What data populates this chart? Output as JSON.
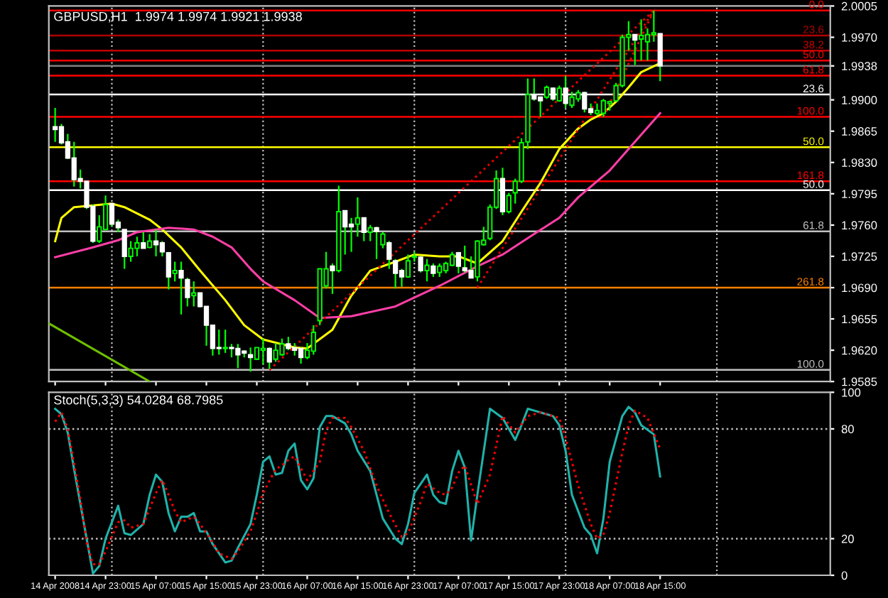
{
  "chart_data": [
    {
      "type": "candlestick",
      "title": "GBPUSD,H1  1.9974 1.9974 1.9921 1.9938",
      "color": "#00ff00",
      "colors": [
        "#ffffff",
        "#ffffff",
        "#ffffff",
        "#ffffff",
        "#ffffff",
        "#ffffff",
        "#ffffff",
        "#00ff00",
        "#00ff00",
        "#ffffff",
        "#ffffff",
        "#ffffff",
        "#00ff00",
        "#00ff00",
        "#ffffff",
        "#00ff00",
        "#ffffff",
        "#ffffff",
        "#ffffff",
        "#00ff00",
        "#ffffff",
        "#ffffff",
        "#00ff00",
        "#ffffff",
        "#ffffff",
        "#ffffff",
        "#ffffff",
        "#00ff00",
        "#ffffff",
        "#ffffff",
        "#ffffff",
        "#ffffff",
        "#00ff00",
        "#00ff00",
        "#ffffff",
        "#00ff00",
        "#00ff00",
        "#ffffff",
        "#ffffff",
        "#ffffff",
        "#00ff00",
        "#00ff00",
        "#00ff00",
        "#00ff00",
        "#ffffff",
        "#00ff00",
        "#ffffff",
        "#ffffff",
        "#00ff00",
        "#ffffff",
        "#00ff00",
        "#ffffff",
        "#00ff00",
        "#ffffff",
        "#ffffff",
        "#ffffff",
        "#00ff00",
        "#00ff00",
        "#ffffff",
        "#00ff00",
        "#ffffff",
        "#00ff00",
        "#00ff00",
        "#00ff00",
        "#ffffff",
        "#ffffff",
        "#ffffff",
        "#00ff00",
        "#00ff00",
        "#00ff00",
        "#00ff00",
        "#ffffff",
        "#00ff00",
        "#00ff00",
        "#00ff00",
        "#00ff00",
        "#ffffff",
        "#ffffff",
        "#00ff00",
        "#ffffff",
        "#00ff00",
        "#ffffff",
        "#00ff00",
        "#00ff00",
        "#ffffff",
        "#ffffff",
        "#00ff00",
        "#00ff00",
        "#00ff00",
        "#00ff00",
        "#00ff00",
        "#00ff00",
        "#ffffff",
        "#00ff00",
        "#00ff00",
        "#00ff00",
        "#ffffff"
      ],
      "x": [
        "2008-04-14T15:00",
        "2008-04-14T16:00",
        "2008-04-14T17:00",
        "2008-04-14T18:00",
        "2008-04-14T19:00",
        "2008-04-14T20:00",
        "2008-04-14T21:00",
        "2008-04-14T22:00",
        "2008-04-14T23:00",
        "2008-04-15T00:00",
        "2008-04-15T01:00",
        "2008-04-15T02:00",
        "2008-04-15T03:00",
        "2008-04-15T04:00",
        "2008-04-15T05:00",
        "2008-04-15T06:00",
        "2008-04-15T07:00",
        "2008-04-15T08:00",
        "2008-04-15T09:00",
        "2008-04-15T10:00",
        "2008-04-15T11:00",
        "2008-04-15T12:00",
        "2008-04-15T13:00",
        "2008-04-15T14:00",
        "2008-04-15T15:00",
        "2008-04-15T16:00",
        "2008-04-15T17:00",
        "2008-04-15T18:00",
        "2008-04-15T19:00",
        "2008-04-15T20:00",
        "2008-04-15T21:00",
        "2008-04-15T22:00",
        "2008-04-15T23:00",
        "2008-04-16T00:00",
        "2008-04-16T01:00",
        "2008-04-16T02:00",
        "2008-04-16T03:00",
        "2008-04-16T04:00",
        "2008-04-16T05:00",
        "2008-04-16T06:00",
        "2008-04-16T07:00",
        "2008-04-16T08:00",
        "2008-04-16T09:00",
        "2008-04-16T10:00",
        "2008-04-16T11:00",
        "2008-04-16T12:00",
        "2008-04-16T13:00",
        "2008-04-16T14:00",
        "2008-04-16T15:00",
        "2008-04-16T16:00",
        "2008-04-16T17:00",
        "2008-04-16T18:00",
        "2008-04-16T19:00",
        "2008-04-16T20:00",
        "2008-04-16T21:00",
        "2008-04-16T22:00",
        "2008-04-16T23:00",
        "2008-04-17T00:00",
        "2008-04-17T01:00",
        "2008-04-17T02:00",
        "2008-04-17T03:00",
        "2008-04-17T04:00",
        "2008-04-17T05:00",
        "2008-04-17T06:00",
        "2008-04-17T07:00",
        "2008-04-17T08:00",
        "2008-04-17T09:00",
        "2008-04-17T10:00",
        "2008-04-17T11:00",
        "2008-04-17T12:00",
        "2008-04-17T13:00",
        "2008-04-17T14:00",
        "2008-04-17T15:00",
        "2008-04-17T16:00",
        "2008-04-17T17:00",
        "2008-04-17T18:00",
        "2008-04-17T19:00",
        "2008-04-17T20:00",
        "2008-04-17T21:00",
        "2008-04-17T22:00",
        "2008-04-17T23:00",
        "2008-04-18T00:00",
        "2008-04-18T01:00",
        "2008-04-18T02:00",
        "2008-04-18T03:00",
        "2008-04-18T04:00",
        "2008-04-18T05:00",
        "2008-04-18T06:00",
        "2008-04-18T07:00",
        "2008-04-18T08:00",
        "2008-04-18T09:00",
        "2008-04-18T10:00",
        "2008-04-18T11:00",
        "2008-04-18T12:00",
        "2008-04-18T13:00",
        "2008-04-18T14:00",
        "2008-04-18T15:00"
      ],
      "ohlc": [
        [
          1.987,
          1.9891,
          1.9853,
          1.9867
        ],
        [
          1.987,
          1.9873,
          1.985,
          1.9852
        ],
        [
          1.9853,
          1.9862,
          1.9834,
          1.9835
        ],
        [
          1.9835,
          1.9853,
          1.9803,
          1.9811
        ],
        [
          1.9812,
          1.9822,
          1.9801,
          1.9809
        ],
        [
          1.9809,
          1.9809,
          1.9778,
          1.978
        ],
        [
          1.9781,
          1.9783,
          1.974,
          1.9742
        ],
        [
          1.9742,
          1.9771,
          1.974,
          1.9758
        ],
        [
          1.9755,
          1.9793,
          1.9755,
          1.9783
        ],
        [
          1.9784,
          1.9784,
          1.9758,
          1.9761
        ],
        [
          1.9763,
          1.9766,
          1.9752,
          1.9757
        ],
        [
          1.9755,
          1.9755,
          1.9711,
          1.9725
        ],
        [
          1.9725,
          1.9742,
          1.9719,
          1.9734
        ],
        [
          1.9734,
          1.9747,
          1.9725,
          1.974
        ],
        [
          1.974,
          1.9752,
          1.9734,
          1.9734
        ],
        [
          1.9735,
          1.975,
          1.9734,
          1.9742
        ],
        [
          1.9742,
          1.9755,
          1.9725,
          1.9738
        ],
        [
          1.974,
          1.9742,
          1.9725,
          1.973
        ],
        [
          1.9729,
          1.973,
          1.9688,
          1.9702
        ],
        [
          1.9706,
          1.9719,
          1.9697,
          1.9709
        ],
        [
          1.9709,
          1.9719,
          1.966,
          1.9701
        ],
        [
          1.9699,
          1.9701,
          1.9669,
          1.9679
        ],
        [
          1.9681,
          1.9697,
          1.9669,
          1.9684
        ],
        [
          1.9684,
          1.9684,
          1.9668,
          1.9669
        ],
        [
          1.9669,
          1.9669,
          1.9625,
          1.9648
        ],
        [
          1.9648,
          1.9648,
          1.9614,
          1.9622
        ],
        [
          1.9623,
          1.9643,
          1.9615,
          1.9622
        ],
        [
          1.9622,
          1.9643,
          1.9617,
          1.9623
        ],
        [
          1.9623,
          1.9627,
          1.9612,
          1.9622
        ],
        [
          1.9622,
          1.9627,
          1.96,
          1.9615
        ],
        [
          1.9619,
          1.962,
          1.9612,
          1.9617
        ],
        [
          1.9615,
          1.9623,
          1.9596,
          1.9612
        ],
        [
          1.961,
          1.9623,
          1.9609,
          1.9623
        ],
        [
          1.962,
          1.9633,
          1.9604,
          1.9622
        ],
        [
          1.9622,
          1.9623,
          1.9599,
          1.9607
        ],
        [
          1.961,
          1.9628,
          1.9607,
          1.962
        ],
        [
          1.9615,
          1.9633,
          1.9614,
          1.9627
        ],
        [
          1.9627,
          1.9635,
          1.962,
          1.9622
        ],
        [
          1.9623,
          1.9628,
          1.9614,
          1.962
        ],
        [
          1.9622,
          1.9623,
          1.9605,
          1.9612
        ],
        [
          1.9612,
          1.9628,
          1.961,
          1.962
        ],
        [
          1.9619,
          1.9648,
          1.9615,
          1.964
        ],
        [
          1.9653,
          1.9711,
          1.9648,
          1.9711
        ],
        [
          1.9692,
          1.973,
          1.9689,
          1.9711
        ],
        [
          1.9714,
          1.9717,
          1.9683,
          1.9709
        ],
        [
          1.9709,
          1.9804,
          1.9707,
          1.9775
        ],
        [
          1.9776,
          1.9776,
          1.9727,
          1.9758
        ],
        [
          1.9761,
          1.9768,
          1.973,
          1.9758
        ],
        [
          1.9761,
          1.9791,
          1.9747,
          1.9768
        ],
        [
          1.9768,
          1.9768,
          1.9742,
          1.9752
        ],
        [
          1.9752,
          1.976,
          1.9742,
          1.9757
        ],
        [
          1.9757,
          1.9758,
          1.9722,
          1.9753
        ],
        [
          1.9738,
          1.9752,
          1.9734,
          1.975
        ],
        [
          1.974,
          1.9742,
          1.9711,
          1.9722
        ],
        [
          1.972,
          1.9722,
          1.9689,
          1.9706
        ],
        [
          1.9709,
          1.9711,
          1.9691,
          1.9702
        ],
        [
          1.9702,
          1.9727,
          1.9701,
          1.972
        ],
        [
          1.9724,
          1.973,
          1.9719,
          1.9725
        ],
        [
          1.9724,
          1.9725,
          1.9707,
          1.9709
        ],
        [
          1.9709,
          1.9722,
          1.9697,
          1.9715
        ],
        [
          1.9714,
          1.9717,
          1.9702,
          1.9706
        ],
        [
          1.9707,
          1.9717,
          1.9702,
          1.9714
        ],
        [
          1.9709,
          1.9719,
          1.9706,
          1.9717
        ],
        [
          1.9715,
          1.973,
          1.9714,
          1.9727
        ],
        [
          1.9729,
          1.973,
          1.9706,
          1.9714
        ],
        [
          1.9712,
          1.9737,
          1.9707,
          1.9709
        ],
        [
          1.9709,
          1.9725,
          1.9701,
          1.9701
        ],
        [
          1.9702,
          1.9743,
          1.9697,
          1.9742
        ],
        [
          1.9738,
          1.9758,
          1.9737,
          1.9743
        ],
        [
          1.9745,
          1.9783,
          1.9743,
          1.978
        ],
        [
          1.978,
          1.9821,
          1.9778,
          1.9812
        ],
        [
          1.9812,
          1.9824,
          1.9771,
          1.9775
        ],
        [
          1.9775,
          1.9796,
          1.9773,
          1.9793
        ],
        [
          1.9796,
          1.9812,
          1.9784,
          1.9809
        ],
        [
          1.9809,
          1.9857,
          1.9807,
          1.9852
        ],
        [
          1.9853,
          1.9924,
          1.9845,
          1.9906
        ],
        [
          1.9906,
          1.9924,
          1.9899,
          1.9901
        ],
        [
          1.9903,
          1.9903,
          1.9881,
          1.9899
        ],
        [
          1.9903,
          1.9916,
          1.9901,
          1.9914
        ],
        [
          1.9913,
          1.9914,
          1.9899,
          1.9901
        ],
        [
          1.9899,
          1.9916,
          1.9898,
          1.9913
        ],
        [
          1.9913,
          1.9927,
          1.9891,
          1.9896
        ],
        [
          1.9894,
          1.9909,
          1.9891,
          1.9903
        ],
        [
          1.9901,
          1.9911,
          1.9898,
          1.9908
        ],
        [
          1.9908,
          1.9909,
          1.9886,
          1.989
        ],
        [
          1.989,
          1.9896,
          1.9883,
          1.9886
        ],
        [
          1.9885,
          1.9896,
          1.9883,
          1.9888
        ],
        [
          1.9885,
          1.9901,
          1.9881,
          1.9899
        ],
        [
          1.9896,
          1.9899,
          1.9888,
          1.9898
        ],
        [
          1.9899,
          1.9919,
          1.9898,
          1.9916
        ],
        [
          1.9916,
          1.9973,
          1.9914,
          1.997
        ],
        [
          1.997,
          1.9988,
          1.9955,
          1.9973
        ],
        [
          1.9973,
          1.9973,
          1.9939,
          1.9967
        ],
        [
          1.9968,
          1.999,
          1.9944,
          1.9972
        ],
        [
          1.9965,
          1.998,
          1.9944,
          1.9973
        ],
        [
          1.9973,
          2.0,
          1.9965,
          1.9975
        ],
        [
          1.9974,
          1.9974,
          1.9921,
          1.9938
        ]
      ],
      "series": [
        {
          "type": "line",
          "color": "#ffff00",
          "x": [
            "2008-04-14T15:00",
            "2008-04-14T16:00",
            "2008-04-14T18:00",
            "2008-04-15T00:00",
            "2008-04-15T02:00",
            "2008-04-15T06:00",
            "2008-04-15T08:00",
            "2008-04-15T11:00",
            "2008-04-15T14:00",
            "2008-04-15T18:00",
            "2008-04-15T21:00",
            "2008-04-16T00:00",
            "2008-04-16T05:00",
            "2008-04-16T07:00",
            "2008-04-16T11:00",
            "2008-04-16T14:00",
            "2008-04-16T17:00",
            "2008-04-16T21:00",
            "2008-04-17T00:00",
            "2008-04-17T04:00",
            "2008-04-17T07:00",
            "2008-04-17T10:00",
            "2008-04-17T14:00",
            "2008-04-17T17:00",
            "2008-04-17T20:00",
            "2008-04-17T23:00",
            "2008-04-18T02:00",
            "2008-04-18T04:00",
            "2008-04-18T06:00",
            "2008-04-18T08:00",
            "2008-04-18T10:00",
            "2008-04-18T12:00",
            "2008-04-18T15:00"
          ],
          "values": [
            1.9742,
            1.9768,
            1.978,
            1.9784,
            1.978,
            1.9766,
            1.9755,
            1.9735,
            1.9709,
            1.9676,
            1.9648,
            1.9632,
            1.9623,
            1.9622,
            1.9643,
            1.9681,
            1.9709,
            1.9719,
            1.9727,
            1.9725,
            1.9725,
            1.9717,
            1.9742,
            1.9775,
            1.9807,
            1.9845,
            1.9868,
            1.9878,
            1.9885,
            1.9898,
            1.9914,
            1.9931,
            1.9941
          ]
        },
        {
          "type": "line",
          "color": "#ff3fa6",
          "x": [
            "2008-04-14T15:00",
            "2008-04-14T21:00",
            "2008-04-15T01:00",
            "2008-04-15T04:00",
            "2008-04-15T09:00",
            "2008-04-15T13:00",
            "2008-04-15T16:00",
            "2008-04-15T19:00",
            "2008-04-15T22:00",
            "2008-04-16T00:00",
            "2008-04-16T05:00",
            "2008-04-16T09:00",
            "2008-04-16T14:00",
            "2008-04-16T21:00",
            "2008-04-17T04:00",
            "2008-04-17T10:00",
            "2008-04-17T14:00",
            "2008-04-17T19:00",
            "2008-04-17T23:00",
            "2008-04-18T02:00",
            "2008-04-18T07:00",
            "2008-04-18T10:00",
            "2008-04-18T15:00"
          ],
          "values": [
            1.9724,
            1.9735,
            1.9743,
            1.9752,
            1.9757,
            1.9755,
            1.9747,
            1.9735,
            1.9711,
            1.9697,
            1.9676,
            1.9656,
            1.9658,
            1.9669,
            1.9692,
            1.9714,
            1.9727,
            1.975,
            1.9768,
            1.9791,
            1.9821,
            1.9845,
            1.9885
          ]
        },
        {
          "type": "line",
          "color": "#6fbf00",
          "x": [
            "2008-04-14T14:00",
            "2008-04-15T06:00"
          ],
          "values": [
            1.965,
            1.9585
          ]
        },
        {
          "type": "line",
          "color": "#e00000",
          "line_style": "dotted",
          "x": [
            "2008-04-16T01:00",
            "2008-04-18T14:00"
          ],
          "values": [
            1.9598,
            2.0
          ]
        },
        {
          "type": "line",
          "color": "#e00000",
          "line_style": "dotted",
          "x": [
            "2008-04-17T10:00",
            "2008-04-18T14:00"
          ],
          "values": [
            1.969,
            2.0
          ]
        },
        {
          "type": "line",
          "color": "#e00000",
          "line_style": "dotted",
          "x": [
            "2008-04-18T06:00",
            "2008-04-18T14:00"
          ],
          "values": [
            1.9881,
            2.0
          ]
        }
      ],
      "xlim": [
        "2008-04-14T14:00",
        "2008-04-19T18:00"
      ],
      "xticks": [
        {
          "value": "2008-04-14T15:00",
          "label": null
        },
        {
          "value": "2008-04-14T23:00",
          "label": null
        },
        {
          "value": "2008-04-15T07:00",
          "label": null
        },
        {
          "value": "2008-04-15T15:00",
          "label": null
        },
        {
          "value": "2008-04-15T23:00",
          "label": null
        },
        {
          "value": "2008-04-16T07:00",
          "label": null
        },
        {
          "value": "2008-04-16T15:00",
          "label": null
        },
        {
          "value": "2008-04-16T23:00",
          "label": null
        },
        {
          "value": "2008-04-17T07:00",
          "label": null
        },
        {
          "value": "2008-04-17T15:00",
          "label": null
        },
        {
          "value": "2008-04-17T23:00",
          "label": null
        },
        {
          "value": "2008-04-18T07:00",
          "label": null
        },
        {
          "value": "2008-04-18T15:00",
          "label": null
        }
      ],
      "ylim": [
        1.9585,
        2.0005
      ],
      "yticks": [
        {
          "value": 2.0005,
          "label": "2.0005"
        },
        {
          "value": 1.997,
          "label": "1.9970"
        },
        {
          "value": 1.9938,
          "label": "1.9938"
        },
        {
          "value": 1.99,
          "label": "1.9900"
        },
        {
          "value": 1.9865,
          "label": "1.9865"
        },
        {
          "value": 1.983,
          "label": "1.9830"
        },
        {
          "value": 1.9795,
          "label": "1.9795"
        },
        {
          "value": 1.976,
          "label": "1.9760"
        },
        {
          "value": 1.9725,
          "label": "1.9725"
        },
        {
          "value": 1.969,
          "label": "1.9690"
        },
        {
          "value": 1.9655,
          "label": "1.9655"
        },
        {
          "value": 1.962,
          "label": "1.9620"
        },
        {
          "value": 1.9585,
          "label": "1.9585"
        }
      ],
      "tick_labels": "y",
      "annotations": [
        {
          "text": "0.0",
          "x": "2008-04-19T17:00",
          "y": 2.0
        },
        {
          "text": "23.6",
          "x": "2008-04-19T17:00",
          "y": 1.9972
        },
        {
          "text": "38.2",
          "x": "2008-04-19T17:00",
          "y": 1.9955
        },
        {
          "text": "50.0",
          "x": "2008-04-19T17:00",
          "y": 1.9944
        },
        {
          "text": "61.8",
          "x": "2008-04-19T17:00",
          "y": 1.9927
        },
        {
          "text": "23.6",
          "x": "2008-04-19T17:00",
          "y": 1.9906
        },
        {
          "text": "100.0",
          "x": "2008-04-19T17:00",
          "y": 1.9881
        },
        {
          "text": "50.0",
          "x": "2008-04-19T17:00",
          "y": 1.9847
        },
        {
          "text": "161.8",
          "x": "2008-04-19T17:00",
          "y": 1.9809
        },
        {
          "text": "50.0",
          "x": "2008-04-19T17:00",
          "y": 1.9799
        },
        {
          "text": "61.8",
          "x": "2008-04-19T17:00",
          "y": 1.9753
        },
        {
          "text": "261.8",
          "x": "2008-04-19T17:00",
          "y": 1.969
        },
        {
          "text": "100.0",
          "x": "2008-04-19T17:00",
          "y": 1.9598
        }
      ],
      "ref_lines": [
        {
          "axis": "x",
          "value": "2008-04-15T00:00",
          "color": "#c0c0c0",
          "line_style": "dotted"
        },
        {
          "axis": "x",
          "value": "2008-04-16T00:00",
          "color": "#c0c0c0",
          "line_style": "dotted"
        },
        {
          "axis": "x",
          "value": "2008-04-17T00:00",
          "color": "#c0c0c0",
          "line_style": "dotted"
        },
        {
          "axis": "x",
          "value": "2008-04-18T00:00",
          "color": "#c0c0c0",
          "line_style": "dotted"
        },
        {
          "axis": "x",
          "value": "2008-04-19T00:00",
          "color": "#c0c0c0",
          "line_style": "dotted"
        },
        {
          "axis": "y",
          "value": 2.0,
          "color": "#ff0000"
        },
        {
          "axis": "y",
          "value": 1.9972,
          "color": "#b00000"
        },
        {
          "axis": "y",
          "value": 1.9955,
          "color": "#c00000"
        },
        {
          "axis": "y",
          "value": 1.9944,
          "color": "#ff0000"
        },
        {
          "axis": "y",
          "value": 1.9938,
          "color": "#808080"
        },
        {
          "axis": "y",
          "value": 1.9927,
          "color": "#ff0000"
        },
        {
          "axis": "y",
          "value": 1.9906,
          "color": "#ffffff"
        },
        {
          "axis": "y",
          "value": 1.9881,
          "color": "#ff0000"
        },
        {
          "axis": "y",
          "value": 1.9847,
          "color": "#ffff00"
        },
        {
          "axis": "y",
          "value": 1.9809,
          "color": "#ff0000"
        },
        {
          "axis": "y",
          "value": 1.9799,
          "color": "#ffffff"
        },
        {
          "axis": "y",
          "value": 1.9753,
          "color": "#c0c0c0"
        },
        {
          "axis": "y",
          "value": 1.969,
          "color": "#ff8000"
        },
        {
          "axis": "y",
          "value": 1.9598,
          "color": "#c0c0c0"
        }
      ]
    },
    {
      "type": "line",
      "title": "Stoch(5,3,3) 54.0284 68.7985",
      "series": [
        {
          "color": "#20b2aa",
          "x": [
            "2008-04-14T15:00",
            "2008-04-14T16:00",
            "2008-04-14T17:00",
            "2008-04-14T18:00",
            "2008-04-14T20:00",
            "2008-04-14T21:00",
            "2008-04-14T22:00",
            "2008-04-14T23:00",
            "2008-04-15T01:00",
            "2008-04-15T02:00",
            "2008-04-15T03:00",
            "2008-04-15T05:00",
            "2008-04-15T06:00",
            "2008-04-15T07:00",
            "2008-04-15T08:00",
            "2008-04-15T09:00",
            "2008-04-15T10:00",
            "2008-04-15T11:00",
            "2008-04-15T12:00",
            "2008-04-15T13:00",
            "2008-04-15T14:00",
            "2008-04-15T15:00",
            "2008-04-15T16:00",
            "2008-04-15T18:00",
            "2008-04-15T19:00",
            "2008-04-15T20:00",
            "2008-04-15T22:00",
            "2008-04-15T23:00",
            "2008-04-16T00:00",
            "2008-04-16T01:00",
            "2008-04-16T02:00",
            "2008-04-16T03:00",
            "2008-04-16T04:00",
            "2008-04-16T05:00",
            "2008-04-16T06:00",
            "2008-04-16T07:00",
            "2008-04-16T08:00",
            "2008-04-16T09:00",
            "2008-04-16T10:00",
            "2008-04-16T11:00",
            "2008-04-16T13:00",
            "2008-04-16T14:00",
            "2008-04-16T15:00",
            "2008-04-16T17:00",
            "2008-04-16T18:00",
            "2008-04-16T19:00",
            "2008-04-16T21:00",
            "2008-04-16T22:00",
            "2008-04-16T23:00",
            "2008-04-17T00:00",
            "2008-04-17T02:00",
            "2008-04-17T03:00",
            "2008-04-17T04:00",
            "2008-04-17T05:00",
            "2008-04-17T06:00",
            "2008-04-17T07:00",
            "2008-04-17T08:00",
            "2008-04-17T09:00",
            "2008-04-17T10:00",
            "2008-04-17T12:00",
            "2008-04-17T14:00",
            "2008-04-17T16:00",
            "2008-04-17T17:00",
            "2008-04-17T18:00",
            "2008-04-17T19:00",
            "2008-04-17T21:00",
            "2008-04-17T22:00",
            "2008-04-17T23:00",
            "2008-04-18T00:00",
            "2008-04-18T01:00",
            "2008-04-18T03:00",
            "2008-04-18T04:00",
            "2008-04-18T05:00",
            "2008-04-18T06:00",
            "2008-04-18T07:00",
            "2008-04-18T09:00",
            "2008-04-18T10:00",
            "2008-04-18T11:00",
            "2008-04-18T12:00",
            "2008-04-18T14:00",
            "2008-04-18T15:00"
          ],
          "values": [
            91,
            88,
            78,
            58,
            20,
            1,
            5,
            20,
            38,
            23,
            22,
            28,
            44,
            55,
            51,
            34,
            24,
            32,
            32,
            34,
            24,
            24,
            17,
            7,
            8,
            15,
            28,
            44,
            62,
            65,
            55,
            56,
            68,
            72,
            52,
            47,
            53,
            81,
            87,
            87,
            83,
            77,
            68,
            57,
            44,
            31,
            20,
            17,
            28,
            45,
            55,
            44,
            40,
            39,
            57,
            68,
            59,
            19,
            44,
            91,
            86,
            74,
            82,
            91,
            90,
            88,
            87,
            82,
            68,
            44,
            26,
            22,
            12,
            31,
            62,
            87,
            92,
            89,
            82,
            77,
            54
          ]
        },
        {
          "color": "#ff0000",
          "line_style": "dotted",
          "x": [
            "2008-04-14T15:00",
            "2008-04-14T16:00",
            "2008-04-14T17:00",
            "2008-04-14T19:00",
            "2008-04-14T20:00",
            "2008-04-14T21:00",
            "2008-04-14T22:00",
            "2008-04-14T23:00",
            "2008-04-15T01:00",
            "2008-04-15T02:00",
            "2008-04-15T03:00",
            "2008-04-15T05:00",
            "2008-04-15T07:00",
            "2008-04-15T08:00",
            "2008-04-15T09:00",
            "2008-04-15T10:00",
            "2008-04-15T11:00",
            "2008-04-15T13:00",
            "2008-04-15T14:00",
            "2008-04-15T16:00",
            "2008-04-15T17:00",
            "2008-04-15T19:00",
            "2008-04-15T20:00",
            "2008-04-15T22:00",
            "2008-04-15T23:00",
            "2008-04-16T00:00",
            "2008-04-16T02:00",
            "2008-04-16T03:00",
            "2008-04-16T04:00",
            "2008-04-16T05:00",
            "2008-04-16T07:00",
            "2008-04-16T09:00",
            "2008-04-16T10:00",
            "2008-04-16T11:00",
            "2008-04-16T13:00",
            "2008-04-16T14:00",
            "2008-04-16T16:00",
            "2008-04-16T18:00",
            "2008-04-16T20:00",
            "2008-04-16T22:00",
            "2008-04-16T23:00",
            "2008-04-17T01:00",
            "2008-04-17T02:00",
            "2008-04-17T04:00",
            "2008-04-17T05:00",
            "2008-04-17T06:00",
            "2008-04-17T07:00",
            "2008-04-17T08:00",
            "2008-04-17T10:00",
            "2008-04-17T12:00",
            "2008-04-17T14:00",
            "2008-04-17T16:00",
            "2008-04-17T18:00",
            "2008-04-17T20:00",
            "2008-04-17T23:00",
            "2008-04-18T00:00",
            "2008-04-18T02:00",
            "2008-04-18T04:00",
            "2008-04-18T05:00",
            "2008-04-18T06:00",
            "2008-04-18T07:00",
            "2008-04-18T09:00",
            "2008-04-18T10:00",
            "2008-04-18T11:00",
            "2008-04-18T13:00",
            "2008-04-18T15:00"
          ],
          "values": [
            84,
            89,
            80,
            42,
            18,
            6,
            6,
            13,
            29,
            30,
            26,
            28,
            45,
            52,
            44,
            35,
            29,
            32,
            28,
            18,
            12,
            9,
            13,
            24,
            34,
            45,
            58,
            60,
            63,
            65,
            52,
            62,
            79,
            86,
            86,
            81,
            68,
            49,
            34,
            21,
            23,
            40,
            50,
            45,
            44,
            48,
            56,
            60,
            39,
            55,
            87,
            78,
            87,
            89,
            86,
            75,
            49,
            28,
            20,
            22,
            34,
            67,
            82,
            90,
            86,
            69
          ]
        }
      ],
      "xlim": [
        "2008-04-14T14:00",
        "2008-04-19T18:00"
      ],
      "xticks": [
        {
          "value": "2008-04-14T15:00",
          "label": "14 Apr 2008"
        },
        {
          "value": "2008-04-14T23:00",
          "label": "14 Apr 23:00"
        },
        {
          "value": "2008-04-15T07:00",
          "label": "15 Apr 07:00"
        },
        {
          "value": "2008-04-15T15:00",
          "label": "15 Apr 15:00"
        },
        {
          "value": "2008-04-15T23:00",
          "label": "15 Apr 23:00"
        },
        {
          "value": "2008-04-16T07:00",
          "label": "16 Apr 07:00"
        },
        {
          "value": "2008-04-16T15:00",
          "label": "16 Apr 15:00"
        },
        {
          "value": "2008-04-16T23:00",
          "label": "16 Apr 23:00"
        },
        {
          "value": "2008-04-17T07:00",
          "label": "17 Apr 07:00"
        },
        {
          "value": "2008-04-17T15:00",
          "label": "17 Apr 15:00"
        },
        {
          "value": "2008-04-17T23:00",
          "label": "17 Apr 23:00"
        },
        {
          "value": "2008-04-18T07:00",
          "label": "18 Apr 07:00"
        },
        {
          "value": "2008-04-18T15:00",
          "label": "18 Apr 15:00"
        }
      ],
      "ylim": [
        0,
        100
      ],
      "yticks": [
        0,
        20,
        80,
        100
      ],
      "ref_lines": [
        {
          "axis": "x",
          "value": "2008-04-15T00:00",
          "color": "#c0c0c0",
          "line_style": "dotted"
        },
        {
          "axis": "x",
          "value": "2008-04-16T00:00",
          "color": "#c0c0c0",
          "line_style": "dotted"
        },
        {
          "axis": "x",
          "value": "2008-04-17T00:00",
          "color": "#c0c0c0",
          "line_style": "dotted"
        },
        {
          "axis": "x",
          "value": "2008-04-18T00:00",
          "color": "#c0c0c0",
          "line_style": "dotted"
        },
        {
          "axis": "x",
          "value": "2008-04-19T00:00",
          "color": "#c0c0c0",
          "line_style": "dotted"
        },
        {
          "axis": "y",
          "value": 20,
          "color": "#c0c0c0",
          "line_style": "dotted"
        },
        {
          "axis": "y",
          "value": 80,
          "color": "#c0c0c0",
          "line_style": "dotted"
        }
      ]
    }
  ]
}
